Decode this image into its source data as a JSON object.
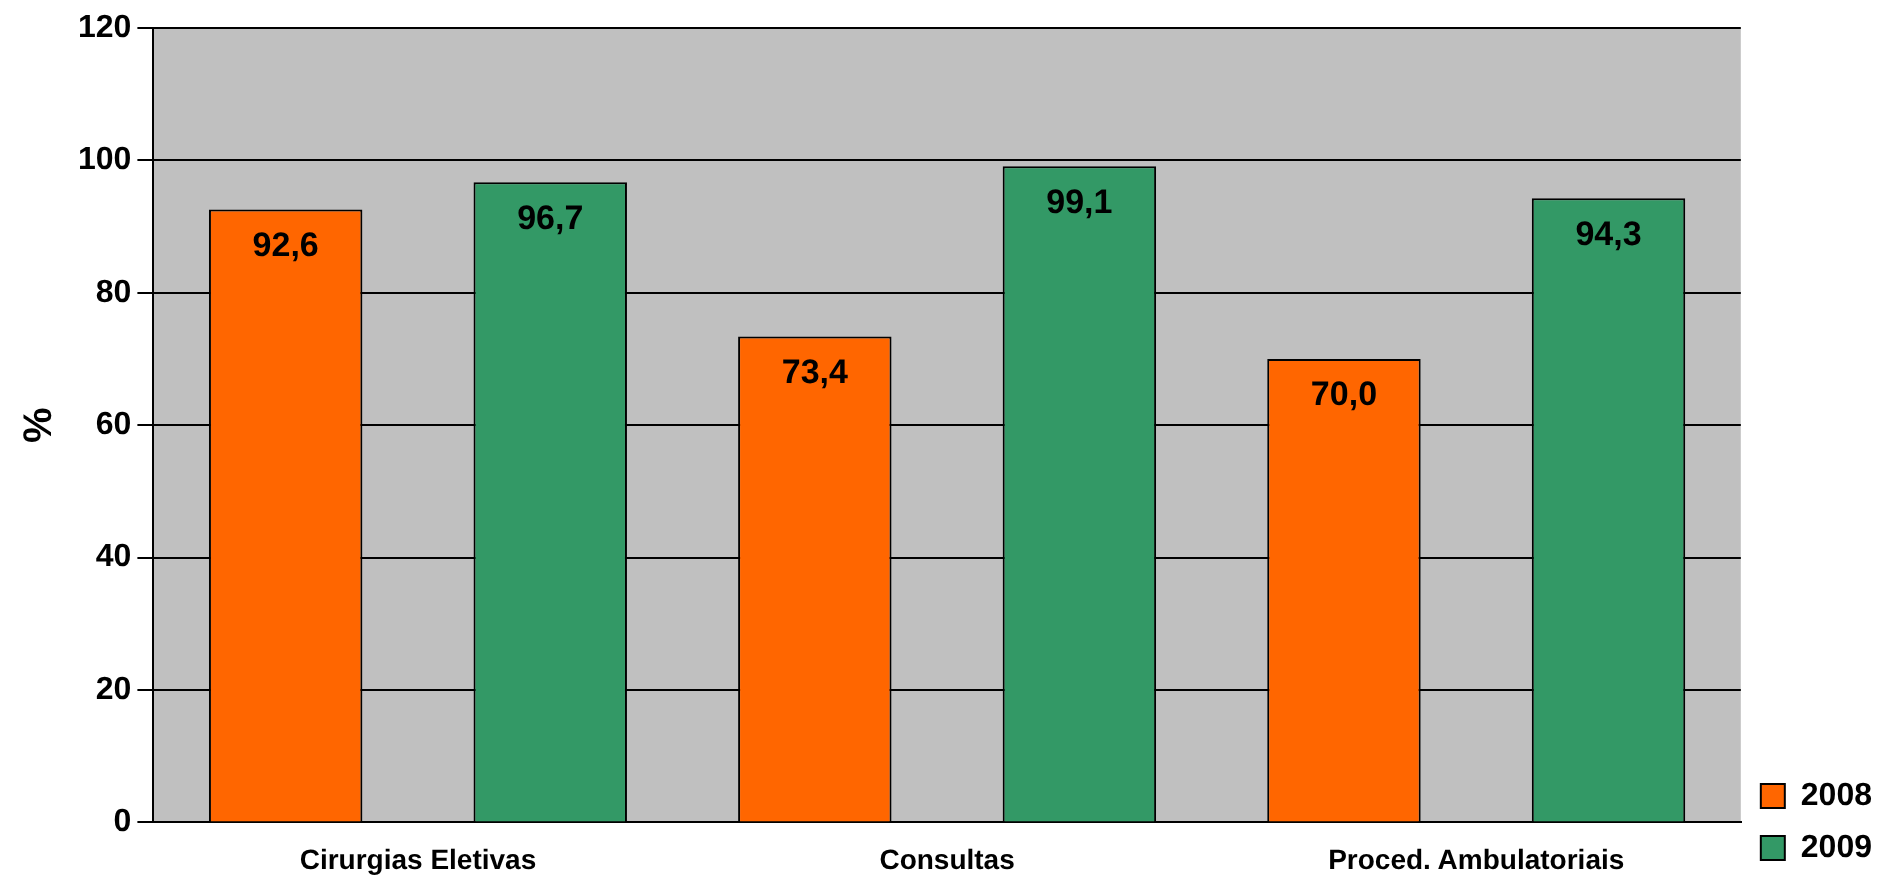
{
  "chart_data": {
    "type": "bar",
    "ylabel": "%",
    "categories": [
      "Cirurgias Eletivas",
      "Consultas",
      "Proced. Ambulatoriais"
    ],
    "series": [
      {
        "name": "2008",
        "color": "#ff6600",
        "values": [
          92.6,
          73.4,
          70.0
        ],
        "value_labels": [
          "92,6",
          "73,4",
          "70,0"
        ]
      },
      {
        "name": "2009",
        "color": "#339966",
        "values": [
          96.7,
          99.1,
          94.3
        ],
        "value_labels": [
          "96,7",
          "99,1",
          "94,3"
        ]
      }
    ],
    "ylim": [
      0,
      120
    ],
    "yticks": [
      0,
      20,
      40,
      60,
      80,
      100,
      120
    ],
    "grid": "y",
    "legend": "bottom right"
  }
}
